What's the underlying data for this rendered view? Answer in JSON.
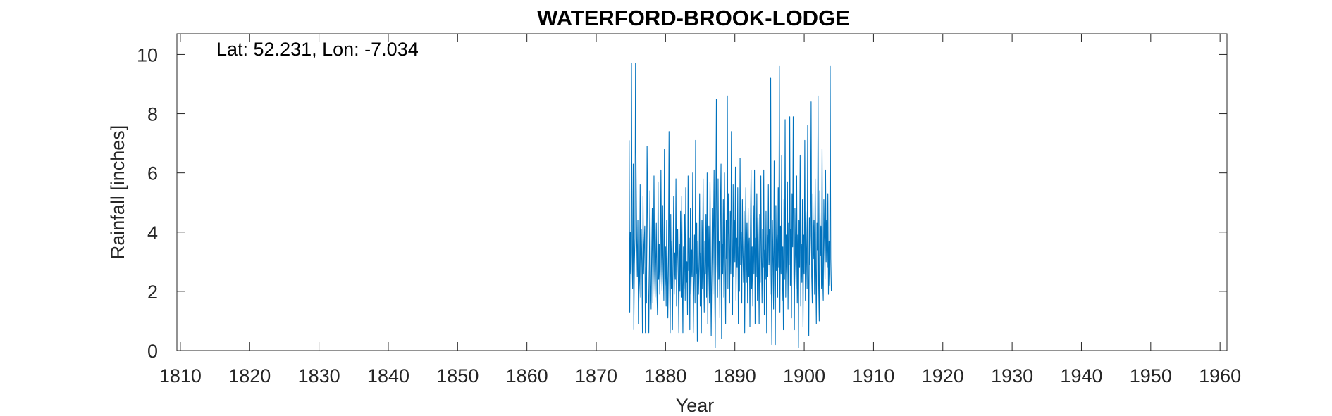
{
  "chart_data": {
    "type": "line",
    "title": "WATERFORD-BROOK-LODGE",
    "annotation": "Lat: 52.231, Lon: -7.034",
    "xlabel": "Year",
    "ylabel": "Rainfall [inches]",
    "xlim": [
      1809.5,
      1961
    ],
    "ylim": [
      0,
      10.7
    ],
    "xticks": [
      1810,
      1820,
      1830,
      1840,
      1850,
      1860,
      1870,
      1880,
      1890,
      1900,
      1910,
      1920,
      1930,
      1940,
      1950,
      1960
    ],
    "yticks": [
      0,
      2,
      4,
      6,
      8,
      10
    ],
    "grid": false,
    "legend": "none",
    "colors": {
      "series": "#0072BD",
      "axis": "#262626"
    },
    "series": [
      {
        "x_start": 1874.75,
        "x_step": 0.08333333,
        "values": [
          7.1,
          1.3,
          4.0,
          2.6,
          9.7,
          3.3,
          2.1,
          6.3,
          0.7,
          2.9,
          3.8,
          9.7,
          6.1,
          3.8,
          2.5,
          4.4,
          0.9,
          1.9,
          2.4,
          5.6,
          1.8,
          4.1,
          3.0,
          0.6,
          5.2,
          2.6,
          3.6,
          4.2,
          0.6,
          2.8,
          1.6,
          6.9,
          4.5,
          2.1,
          0.6,
          3.1,
          5.4,
          2.2,
          1.4,
          3.3,
          4.8,
          1.6,
          2.9,
          5.9,
          2.7,
          1.8,
          3.0,
          4.3,
          2.0,
          1.2,
          5.7,
          2.4,
          3.6,
          1.9,
          2.8,
          6.1,
          3.2,
          2.0,
          4.9,
          2.7,
          1.7,
          6.8,
          2.2,
          3.5,
          1.5,
          4.4,
          2.8,
          1.1,
          3.0,
          7.4,
          2.3,
          0.6,
          4.6,
          2.1,
          3.7,
          0.7,
          2.9,
          5.2,
          1.9,
          3.3,
          2.4,
          5.8,
          1.5,
          3.1,
          4.1,
          2.5,
          0.6,
          3.6,
          2.0,
          4.7,
          1.8,
          5.2,
          2.6,
          0.6,
          3.5,
          2.1,
          4.6,
          1.7,
          5.5,
          2.3,
          3.0,
          1.2,
          5.9,
          2.7,
          3.8,
          0.7,
          4.8,
          1.9,
          3.4,
          2.5,
          6.0,
          0.6,
          2.2,
          3.9,
          1.6,
          7.1,
          2.6,
          4.3,
          0.3,
          3.7,
          1.9,
          2.8,
          5.3,
          1.5,
          3.3,
          0.6,
          4.4,
          2.1,
          5.8,
          2.9,
          1.3,
          3.7,
          2.6,
          4.6,
          1.8,
          6.0,
          0.9,
          2.6,
          4.2,
          1.6,
          5.7,
          3.1,
          0.5,
          2.6,
          4.8,
          1.9,
          3.9,
          6.1,
          2.2,
          0.1,
          4.4,
          8.5,
          2.9,
          1.8,
          5.8,
          2.4,
          3.7,
          1.1,
          4.8,
          6.3,
          0.4,
          3.6,
          2.6,
          5.1,
          1.8,
          6.0,
          2.9,
          0.9,
          4.4,
          3.1,
          8.6,
          2.1,
          5.3,
          3.9,
          1.6,
          4.7,
          2.6,
          7.4,
          3.8,
          1.2,
          5.6,
          2.5,
          4.4,
          3.0,
          6.2,
          1.7,
          3.8,
          2.8,
          5.5,
          0.9,
          3.5,
          2.0,
          6.5,
          2.9,
          4.0,
          1.6,
          5.1,
          3.2,
          2.3,
          4.7,
          0.6,
          3.6,
          5.5,
          2.3,
          4.3,
          1.6,
          4.8,
          2.5,
          3.8,
          0.8,
          4.1,
          6.1,
          2.1,
          3.5,
          1.5,
          4.9,
          2.6,
          6.1,
          0.9,
          3.8,
          2.5,
          5.3,
          1.7,
          4.5,
          3.1,
          0.9,
          4.6,
          2.3,
          5.9,
          3.2,
          1.6,
          4.1,
          2.8,
          6.1,
          1.2,
          3.4,
          2.4,
          4.7,
          0.6,
          3.9,
          2.5,
          5.6,
          2.9,
          4.1,
          1.9,
          9.2,
          2.6,
          0.2,
          4.4,
          3.1,
          1.4,
          6.4,
          2.3,
          0.2,
          4.9,
          2.7,
          3.9,
          1.8,
          5.5,
          2.8,
          9.6,
          1.3,
          4.2,
          2.6,
          6.6,
          1.7,
          3.5,
          0.7,
          5.1,
          2.4,
          7.8,
          1.8,
          3.9,
          2.6,
          5.7,
          1.4,
          4.3,
          2.9,
          7.9,
          2.2,
          4.1,
          1.1,
          5.3,
          3.5,
          7.9,
          2.6,
          0.7,
          4.8,
          3.2,
          2.1,
          5.9,
          1.6,
          3.9,
          0.1,
          4.4,
          2.8,
          6.6,
          1.5,
          3.6,
          2.3,
          5.1,
          0.8,
          3.9,
          2.6,
          7.1,
          1.7,
          4.7,
          3.3,
          2.1,
          7.6,
          2.6,
          0.5,
          4.5,
          2.9,
          3.9,
          8.4,
          2.5,
          1.6,
          5.3,
          3.1,
          4.4,
          1.9,
          5.8,
          2.8,
          0.9,
          4.3,
          3.4,
          8.6,
          2.2,
          1.0,
          5.4,
          3.2,
          4.2,
          2.1,
          6.8,
          2.5,
          1.7,
          5.1,
          3.8,
          2.4,
          6.1,
          3.0,
          4.4,
          2.8,
          5.3,
          1.9,
          3.7,
          2.2,
          9.6,
          3.1,
          2.0
        ]
      }
    ]
  }
}
